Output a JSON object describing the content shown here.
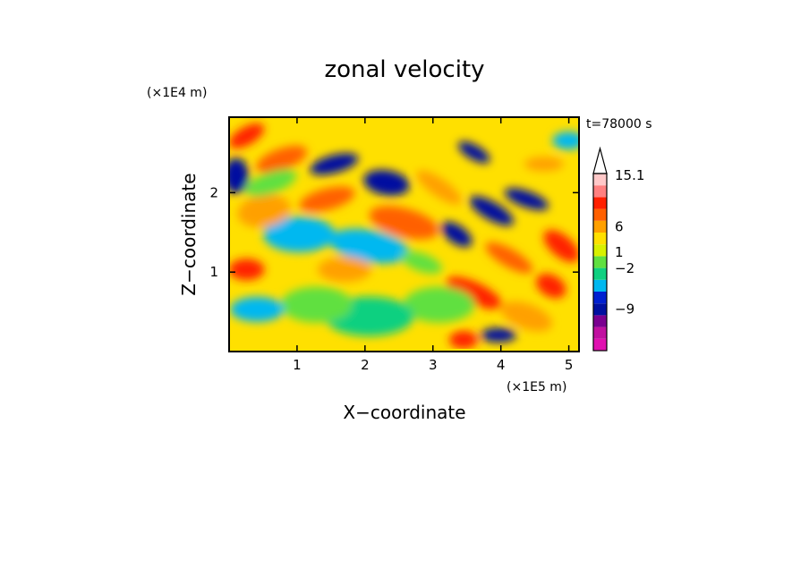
{
  "chart_data": {
    "type": "heatmap",
    "title": "zonal velocity",
    "xlabel": "X−coordinate",
    "ylabel": "Z−coordinate",
    "x_scale_label": "(×1E5 m)",
    "y_scale_label": "(×1E4 m)",
    "time_label": "t=78000 s",
    "xlim": [
      0,
      5.15
    ],
    "ylim": [
      0,
      2.95
    ],
    "x_ticks": [
      "1",
      "2",
      "3",
      "4",
      "5"
    ],
    "y_ticks": [
      "1",
      "2"
    ],
    "colorbar": {
      "labels": [
        "15.1",
        "6",
        "1",
        "−2",
        "−9"
      ],
      "colors": [
        "#e010b0",
        "#c010a0",
        "#7a0090",
        "#0010a0",
        "#0020d0",
        "#00b8f0",
        "#10d080",
        "#60e040",
        "#d8f000",
        "#ffe000",
        "#ffa000",
        "#ff6000",
        "#ff2000",
        "#ff8080",
        "#ffc8c8"
      ]
    }
  }
}
